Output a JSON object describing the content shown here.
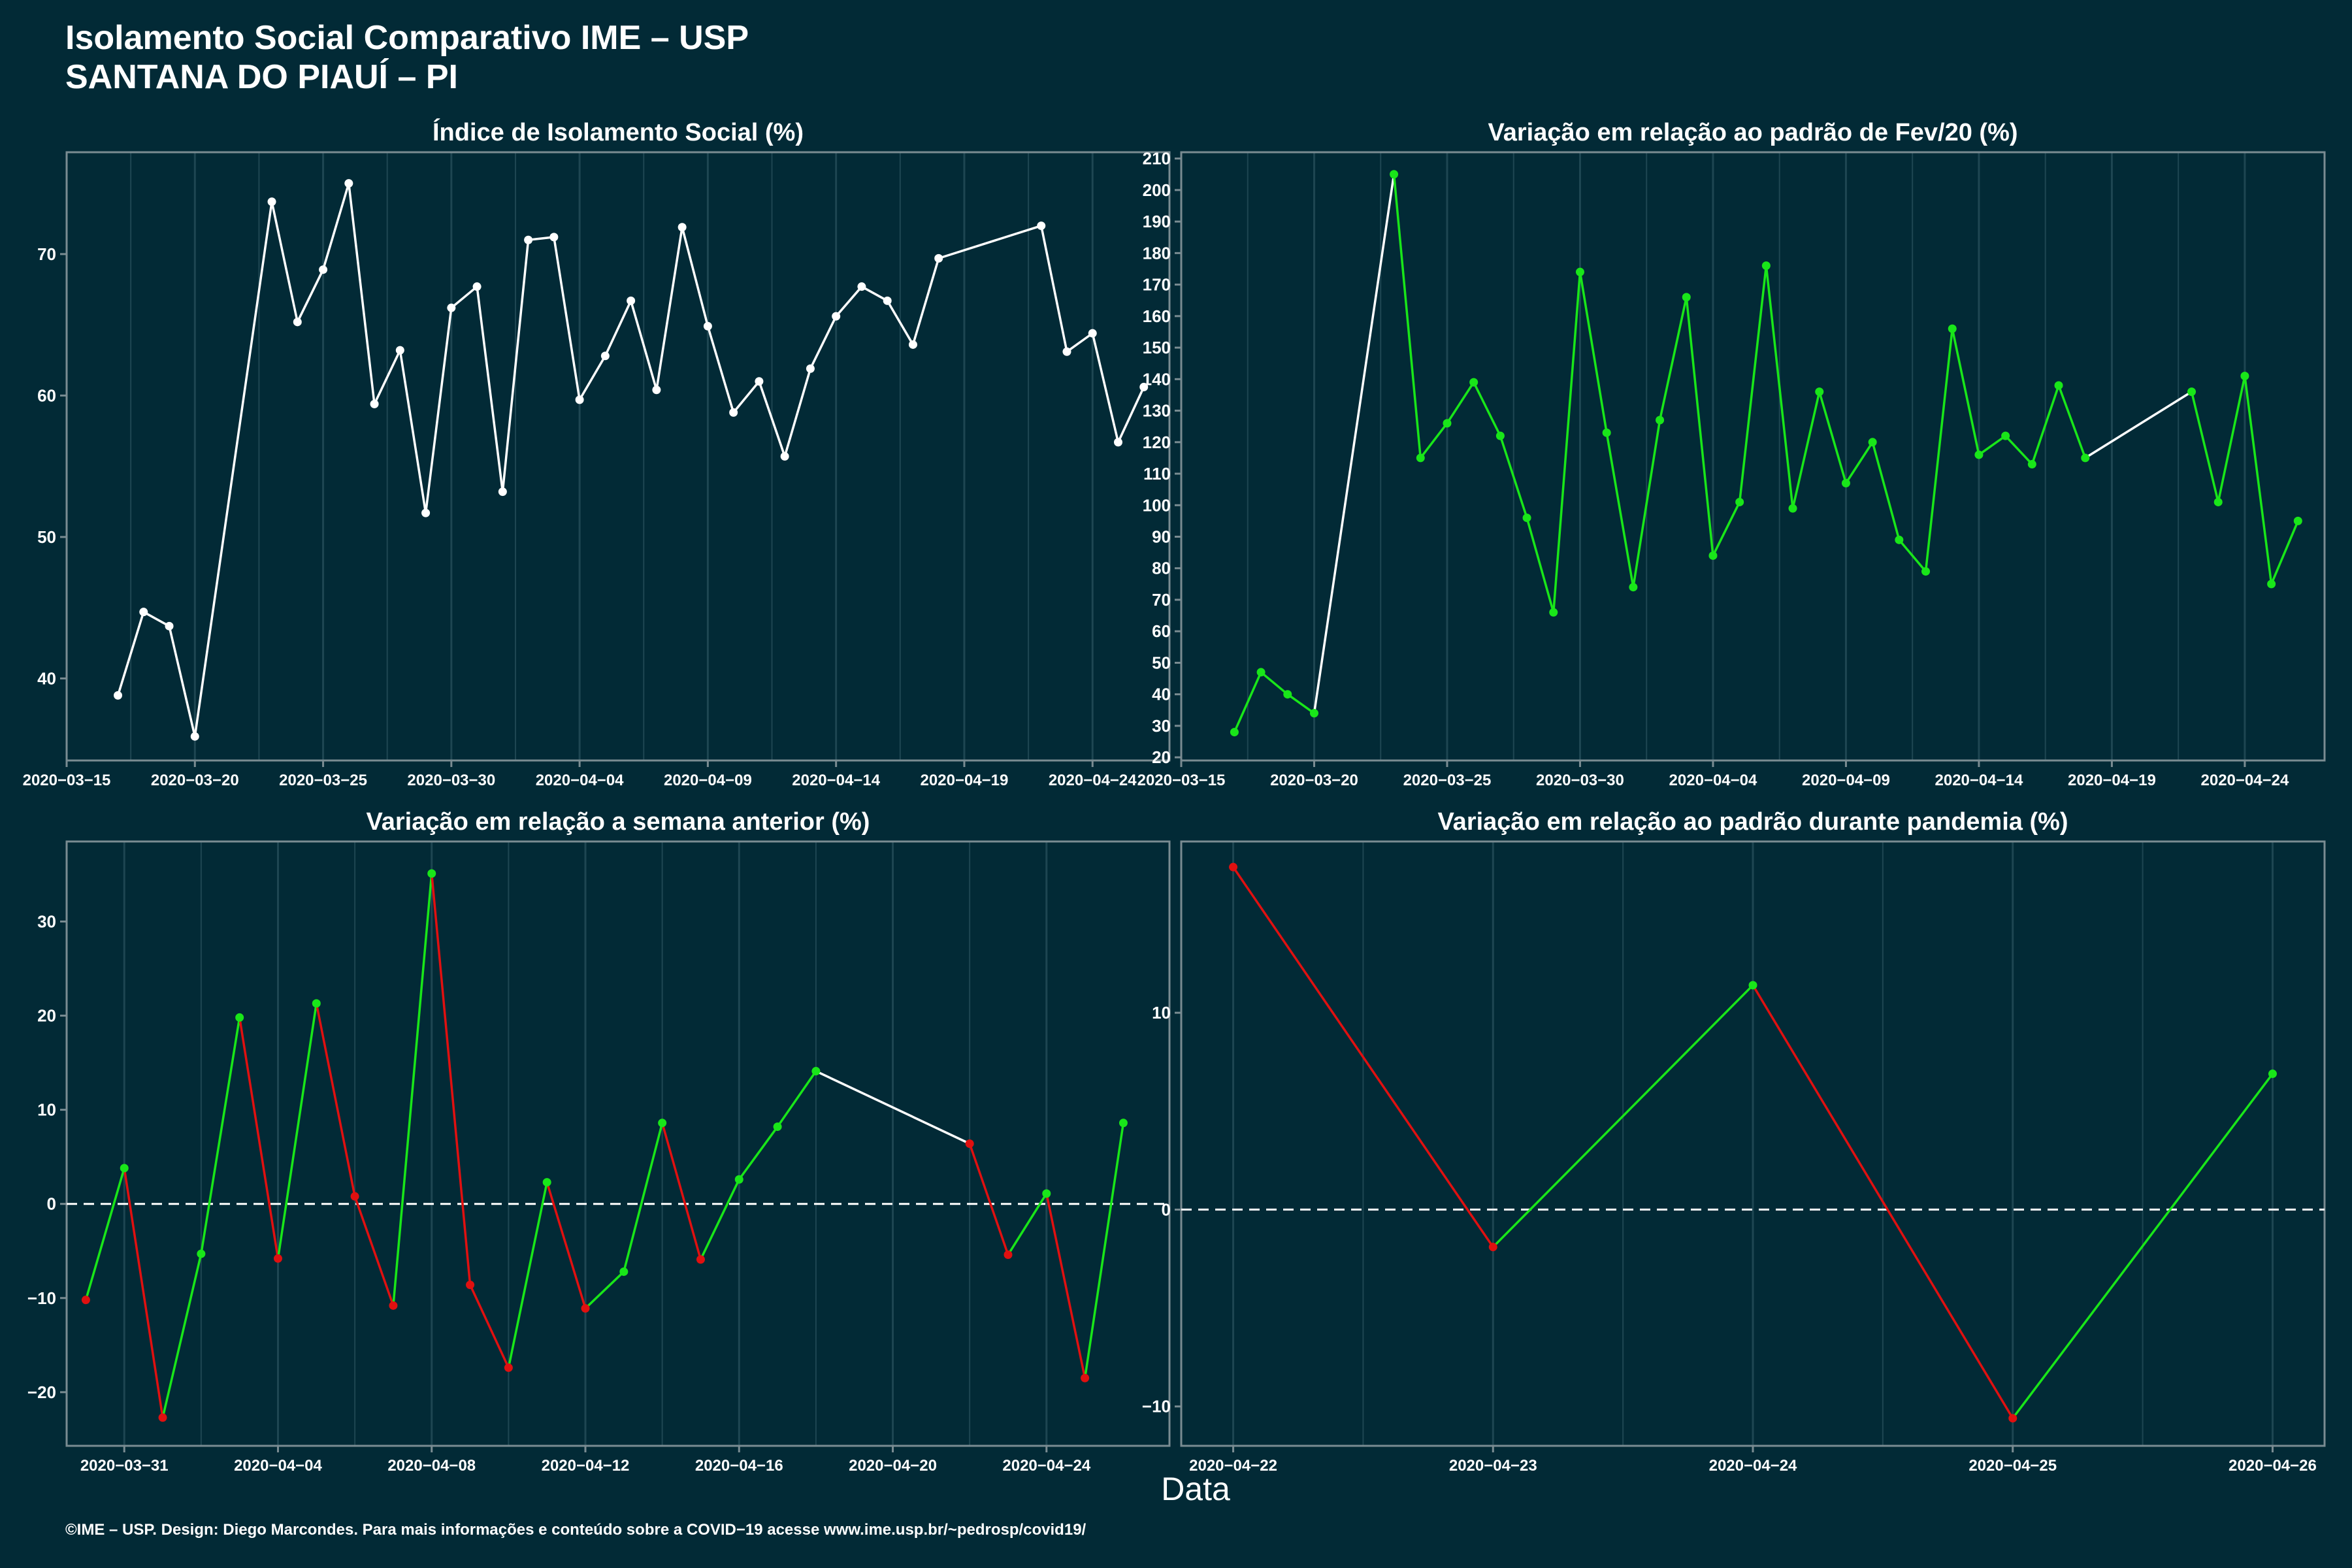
{
  "header": {
    "title_line1": "Isolamento Social Comparativo IME – USP",
    "title_line2": "SANTANA DO PIAUÍ – PI"
  },
  "footer": "©IME – USP. Design: Diego Marcondes. Para mais informações e conteúdo sobre a COVID−19 acesse www.ime.usp.br/~pedrosp/covid19/",
  "x_axis_title": "Data",
  "colors": {
    "background": "#022a36",
    "panel_border": "#7a8c92",
    "grid": "#1e4652",
    "white": "#ffffff",
    "up": "#19e619",
    "down": "#e01010"
  },
  "chart_data": [
    {
      "type": "line",
      "title": "Índice de Isolamento Social (%)",
      "x_type": "date",
      "xlim": [
        "2020-03-15",
        "2020-04-27"
      ],
      "ylim": [
        34.2,
        77.2
      ],
      "y_ticks": [
        40,
        50,
        60,
        70
      ],
      "x_ticks": [
        "2020-03-15",
        "2020-03-20",
        "2020-03-25",
        "2020-03-30",
        "2020-04-04",
        "2020-04-09",
        "2020-04-14",
        "2020-04-19",
        "2020-04-24"
      ],
      "color_mode": "white",
      "dashed_zero": false,
      "points": [
        [
          "2020-03-17",
          38.8
        ],
        [
          "2020-03-18",
          44.7
        ],
        [
          "2020-03-19",
          43.7
        ],
        [
          "2020-03-20",
          35.9
        ],
        [
          "2020-03-23",
          73.7
        ],
        [
          "2020-03-24",
          65.2
        ],
        [
          "2020-03-25",
          68.9
        ],
        [
          "2020-03-26",
          75.0
        ],
        [
          "2020-03-27",
          59.4
        ],
        [
          "2020-03-28",
          63.2
        ],
        [
          "2020-03-29",
          51.7
        ],
        [
          "2020-03-30",
          66.2
        ],
        [
          "2020-03-31",
          67.7
        ],
        [
          "2020-04-01",
          53.2
        ],
        [
          "2020-04-02",
          71.0
        ],
        [
          "2020-04-03",
          71.2
        ],
        [
          "2020-04-04",
          59.7
        ],
        [
          "2020-04-05",
          62.8
        ],
        [
          "2020-04-06",
          66.7
        ],
        [
          "2020-04-07",
          60.4
        ],
        [
          "2020-04-08",
          71.9
        ],
        [
          "2020-04-09",
          64.9
        ],
        [
          "2020-04-10",
          58.8
        ],
        [
          "2020-04-11",
          61.0
        ],
        [
          "2020-04-12",
          55.7
        ],
        [
          "2020-04-13",
          61.9
        ],
        [
          "2020-04-14",
          65.6
        ],
        [
          "2020-04-15",
          67.7
        ],
        [
          "2020-04-16",
          66.7
        ],
        [
          "2020-04-17",
          63.6
        ],
        [
          "2020-04-18",
          69.7
        ],
        [
          "2020-04-22",
          72.0
        ],
        [
          "2020-04-23",
          63.1
        ],
        [
          "2020-04-24",
          64.4
        ],
        [
          "2020-04-25",
          56.7
        ],
        [
          "2020-04-26",
          60.6
        ]
      ]
    },
    {
      "type": "line",
      "title": "Variação em relação ao padrão de Fev/20 (%)",
      "x_type": "date",
      "xlim": [
        "2020-03-15",
        "2020-04-27"
      ],
      "ylim": [
        19,
        212
      ],
      "y_ticks": [
        20,
        30,
        40,
        50,
        60,
        70,
        80,
        90,
        100,
        110,
        120,
        130,
        140,
        150,
        160,
        170,
        180,
        190,
        200,
        210
      ],
      "x_ticks": [
        "2020-03-15",
        "2020-03-20",
        "2020-03-25",
        "2020-03-30",
        "2020-04-04",
        "2020-04-09",
        "2020-04-14",
        "2020-04-19",
        "2020-04-24"
      ],
      "color_mode": "green_gap",
      "dashed_zero": false,
      "points": [
        [
          "2020-03-17",
          28
        ],
        [
          "2020-03-18",
          47
        ],
        [
          "2020-03-19",
          40
        ],
        [
          "2020-03-20",
          34
        ],
        [
          "2020-03-23",
          205
        ],
        [
          "2020-03-24",
          115
        ],
        [
          "2020-03-25",
          126
        ],
        [
          "2020-03-26",
          139
        ],
        [
          "2020-03-27",
          122
        ],
        [
          "2020-03-28",
          96
        ],
        [
          "2020-03-29",
          66
        ],
        [
          "2020-03-30",
          174
        ],
        [
          "2020-03-31",
          123
        ],
        [
          "2020-04-01",
          74
        ],
        [
          "2020-04-02",
          127
        ],
        [
          "2020-04-03",
          166
        ],
        [
          "2020-04-04",
          84
        ],
        [
          "2020-04-05",
          101
        ],
        [
          "2020-04-06",
          176
        ],
        [
          "2020-04-07",
          99
        ],
        [
          "2020-04-08",
          136
        ],
        [
          "2020-04-09",
          107
        ],
        [
          "2020-04-10",
          120
        ],
        [
          "2020-04-11",
          89
        ],
        [
          "2020-04-12",
          79
        ],
        [
          "2020-04-13",
          156
        ],
        [
          "2020-04-14",
          116
        ],
        [
          "2020-04-15",
          122
        ],
        [
          "2020-04-16",
          113
        ],
        [
          "2020-04-17",
          138
        ],
        [
          "2020-04-18",
          115
        ],
        [
          "2020-04-22",
          136
        ],
        [
          "2020-04-23",
          101
        ],
        [
          "2020-04-24",
          141
        ],
        [
          "2020-04-25",
          75
        ],
        [
          "2020-04-26",
          95
        ]
      ]
    },
    {
      "type": "line",
      "title": "Variação em relação a semana anterior (%)",
      "x_type": "date",
      "xlim": [
        "2020-03-29.5",
        "2020-04-27.2"
      ],
      "ylim": [
        -25.7,
        38.5
      ],
      "y_ticks": [
        -20,
        -10,
        0,
        10,
        20,
        30
      ],
      "x_ticks": [
        "2020-03-31",
        "2020-04-04",
        "2020-04-08",
        "2020-04-12",
        "2020-04-16",
        "2020-04-20",
        "2020-04-24"
      ],
      "color_mode": "updown",
      "dashed_zero": true,
      "points": [
        [
          "2020-03-30",
          -10.2
        ],
        [
          "2020-03-31",
          3.8
        ],
        [
          "2020-04-01",
          -22.7
        ],
        [
          "2020-04-02",
          -5.3
        ],
        [
          "2020-04-03",
          19.8
        ],
        [
          "2020-04-04",
          -5.8
        ],
        [
          "2020-04-05",
          21.3
        ],
        [
          "2020-04-06",
          0.8
        ],
        [
          "2020-04-07",
          -10.8
        ],
        [
          "2020-04-08",
          35.1
        ],
        [
          "2020-04-09",
          -8.6
        ],
        [
          "2020-04-10",
          -17.4
        ],
        [
          "2020-04-11",
          2.3
        ],
        [
          "2020-04-12",
          -11.1
        ],
        [
          "2020-04-13",
          -7.2
        ],
        [
          "2020-04-14",
          8.6
        ],
        [
          "2020-04-15",
          -5.9
        ],
        [
          "2020-04-16",
          2.6
        ],
        [
          "2020-04-17",
          8.2
        ],
        [
          "2020-04-18",
          14.1
        ],
        [
          "2020-04-22",
          6.4
        ],
        [
          "2020-04-23",
          -5.4
        ],
        [
          "2020-04-24",
          1.1
        ],
        [
          "2020-04-25",
          -18.5
        ],
        [
          "2020-04-26",
          8.6
        ]
      ]
    },
    {
      "type": "line",
      "title": "Variação em relação ao padrão durante pandemia (%)",
      "x_type": "date",
      "xlim": [
        "2020-04-21.8",
        "2020-04-26.2"
      ],
      "ylim": [
        -12.0,
        18.7
      ],
      "y_ticks": [
        -10,
        0,
        10
      ],
      "x_ticks": [
        "2020-04-22",
        "2020-04-23",
        "2020-04-24",
        "2020-04-25",
        "2020-04-26"
      ],
      "color_mode": "updown",
      "dashed_zero": true,
      "points": [
        [
          "2020-04-22",
          17.4
        ],
        [
          "2020-04-23",
          -1.9
        ],
        [
          "2020-04-24",
          11.4
        ],
        [
          "2020-04-25",
          -10.6
        ],
        [
          "2020-04-26",
          6.9
        ]
      ]
    }
  ]
}
